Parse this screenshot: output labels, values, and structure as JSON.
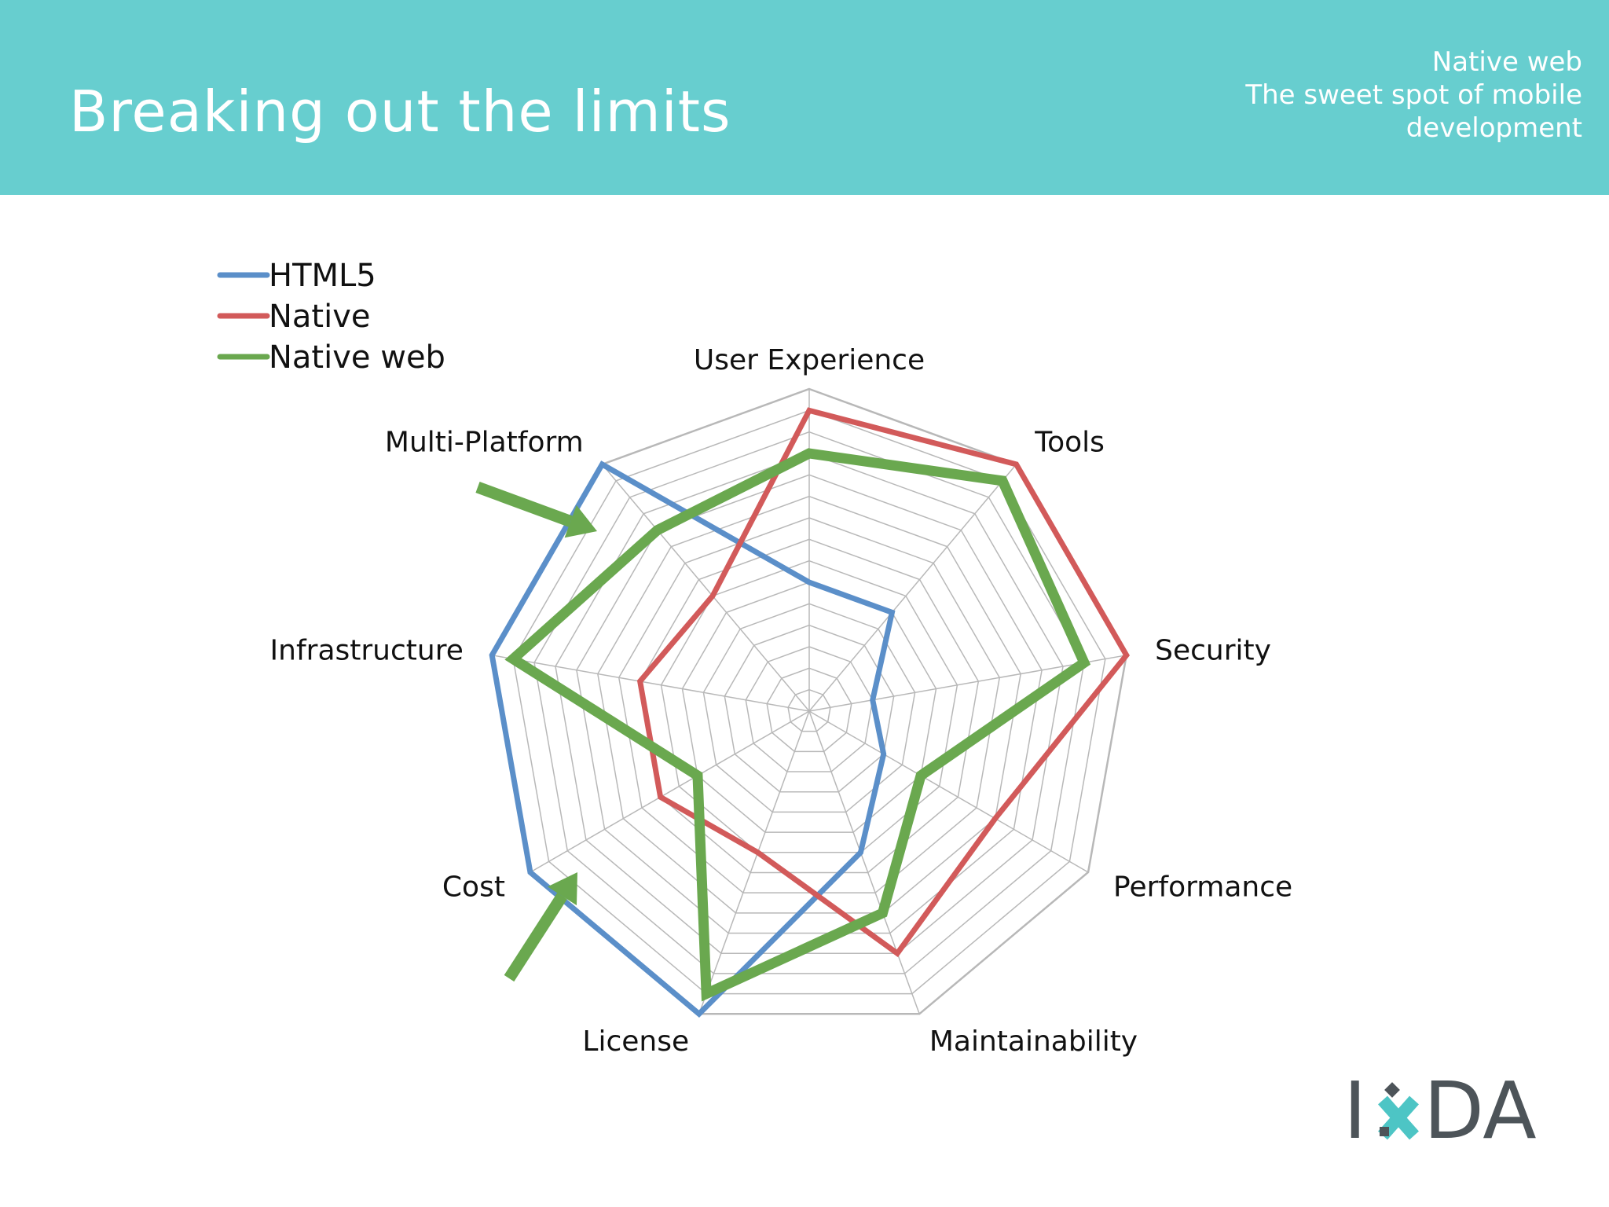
{
  "header": {
    "title": "Breaking out the limits",
    "subtitle_lines": [
      "Native web",
      "The sweet spot of mobile",
      "development"
    ]
  },
  "colors": {
    "header_bg": "#67cecf",
    "html5": "#5b8fc9",
    "native": "#d25a5a",
    "native_web": "#6aa84f",
    "grid": "#b8b8b8",
    "logo_gray": "#4d5459",
    "logo_teal": "#4dc5c5"
  },
  "logo": {
    "text_left": "I",
    "text_right": "DA",
    "mark": "x-mark-icon"
  },
  "chart_data": {
    "type": "radar",
    "categories": [
      "User Experience",
      "Tools",
      "Security",
      "Performance",
      "Maintainability",
      "License",
      "Cost",
      "Infrastructure",
      "Multi-Platform"
    ],
    "range": [
      0,
      15
    ],
    "grid_levels": 15,
    "grid": true,
    "legend_position": "top-left",
    "series": [
      {
        "name": "HTML5",
        "color": "#5b8fc9",
        "values": [
          6,
          6,
          3,
          4,
          7,
          15,
          15,
          15,
          15
        ]
      },
      {
        "name": "Native",
        "color": "#d25a5a",
        "values": [
          14,
          15,
          15,
          10,
          12,
          7,
          8,
          8,
          7
        ]
      },
      {
        "name": "Native web",
        "color": "#6aa84f",
        "values": [
          12,
          14,
          13,
          6,
          10,
          14,
          6,
          14,
          11
        ]
      }
    ],
    "annotations": [
      {
        "type": "arrow",
        "target": "Multi-Platform",
        "color": "#6aa84f"
      },
      {
        "type": "arrow",
        "target": "Cost",
        "color": "#6aa84f"
      }
    ]
  }
}
